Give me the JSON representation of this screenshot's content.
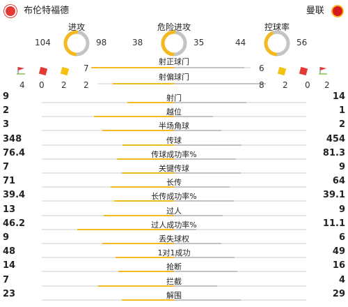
{
  "header": {
    "home_team": "布伦特福德",
    "away_team": "曼联"
  },
  "gauges": [
    {
      "label": "进攻",
      "home": "104",
      "away": "98"
    },
    {
      "label": "危险进攻",
      "home": "38",
      "away": "35"
    },
    {
      "label": "控球率",
      "home": "44",
      "away": "56"
    }
  ],
  "events": {
    "home_shots_on": "7",
    "away_shots_on": "6",
    "shots_on_label": "射正球门",
    "shots_off_label": "射偏球门",
    "home_counts": [
      "4",
      "0",
      "2",
      "2"
    ],
    "away_counts": [
      "8",
      "2",
      "0",
      "2"
    ]
  },
  "stats": [
    {
      "label": "射门",
      "home": "9",
      "away": "14",
      "hf": 0.39
    },
    {
      "label": "越位",
      "home": "2",
      "away": "1",
      "hf": 0.67
    },
    {
      "label": "半场角球",
      "home": "3",
      "away": "2",
      "hf": 0.6
    },
    {
      "label": "传球",
      "home": "348",
      "away": "454",
      "hf": 0.43
    },
    {
      "label": "传球成功率%",
      "home": "76.4",
      "away": "81.3",
      "hf": 0.48
    },
    {
      "label": "关键传球",
      "home": "7",
      "away": "9",
      "hf": 0.44
    },
    {
      "label": "长传",
      "home": "71",
      "away": "64",
      "hf": 0.53
    },
    {
      "label": "长传成功率%",
      "home": "39.4",
      "away": "39.1",
      "hf": 0.5
    },
    {
      "label": "过人",
      "home": "13",
      "away": "9",
      "hf": 0.59
    },
    {
      "label": "过人成功率%",
      "home": "46.2",
      "away": "11.1",
      "hf": 0.81
    },
    {
      "label": "丢失球权",
      "home": "9",
      "away": "6",
      "hf": 0.6
    },
    {
      "label": "1对1成功",
      "home": "48",
      "away": "49",
      "hf": 0.49
    },
    {
      "label": "抢断",
      "home": "14",
      "away": "16",
      "hf": 0.47
    },
    {
      "label": "拦截",
      "home": "7",
      "away": "4",
      "hf": 0.64
    },
    {
      "label": "解围",
      "home": "23",
      "away": "29",
      "hf": 0.44
    }
  ],
  "colors": {
    "home": "#f4b921",
    "away": "#c4c4c4",
    "red_card": "#e53935",
    "yellow_card": "#f4c20d"
  }
}
